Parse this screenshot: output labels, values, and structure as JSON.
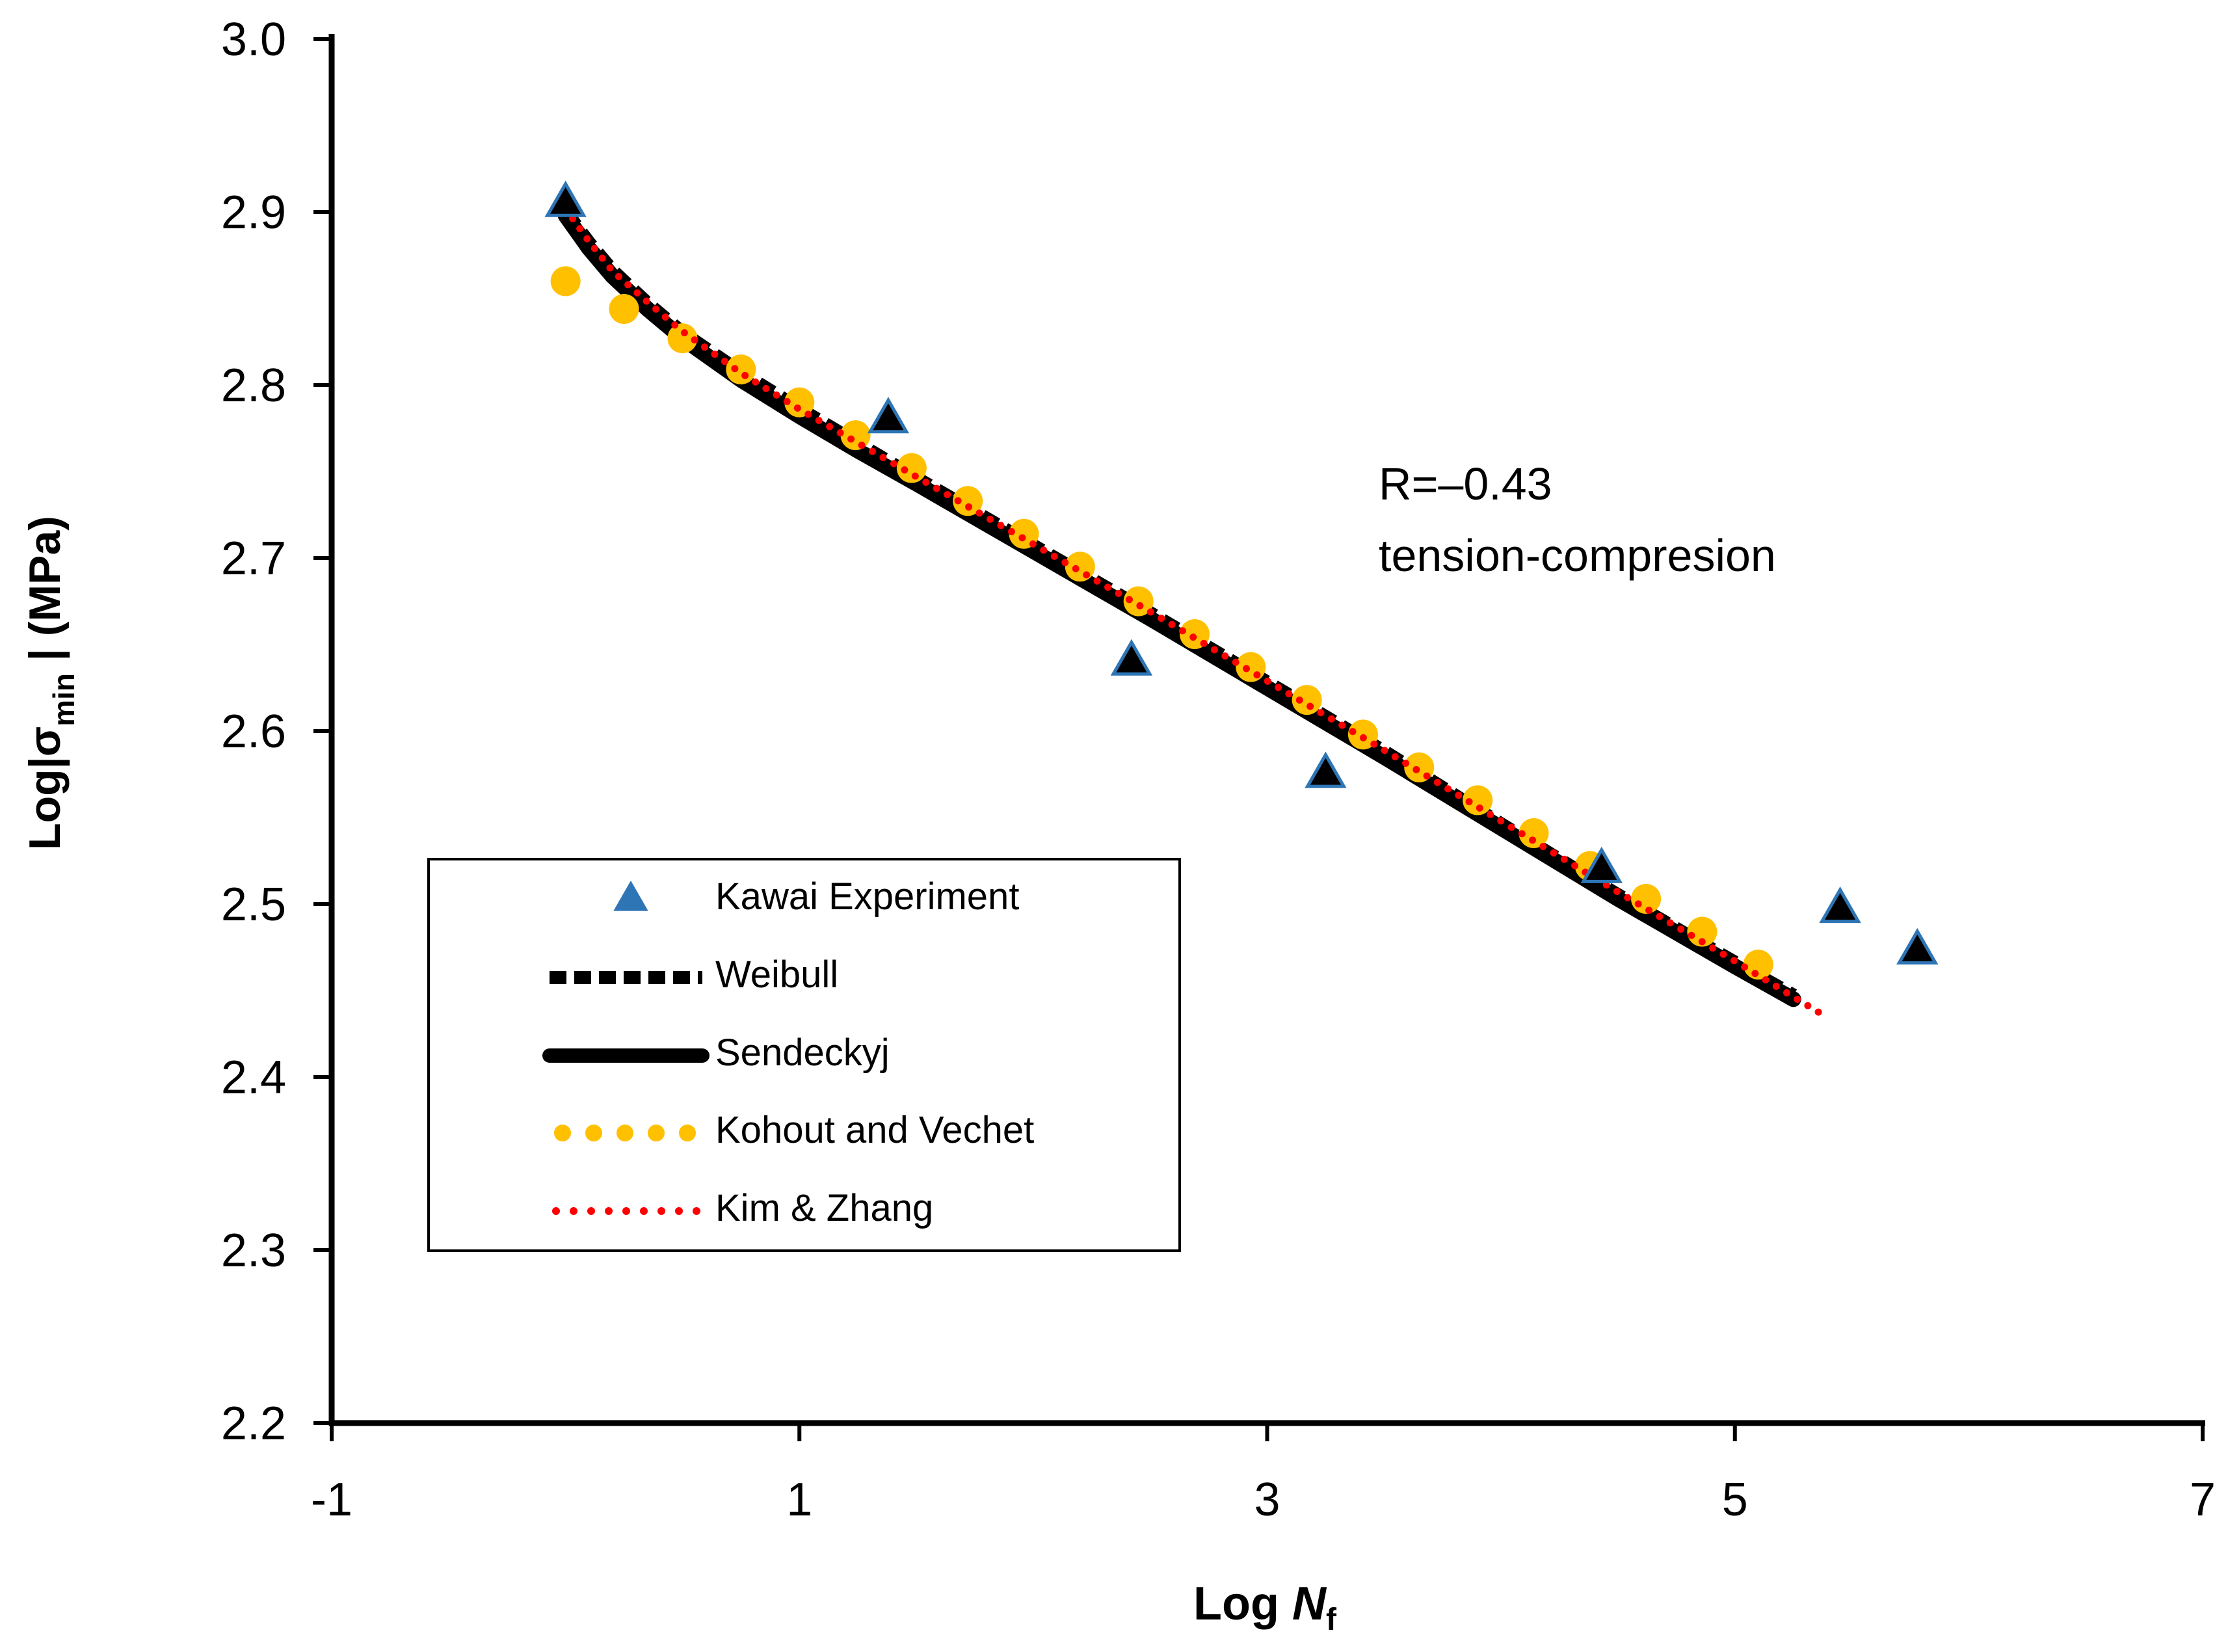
{
  "chart_data": {
    "type": "scatter",
    "title": "",
    "xlabel": {
      "main": "Log ",
      "var": "N",
      "sub": "f"
    },
    "ylabel": {
      "prefix": "Log|σ",
      "sub": "min",
      "suffix": " | (MPa)"
    },
    "xlim": [
      -1,
      7
    ],
    "ylim": [
      2.2,
      3.0
    ],
    "x_ticks": [
      -1,
      1,
      3,
      5,
      7
    ],
    "x_tick_labels": [
      "-1",
      "1",
      "3",
      "5",
      "7"
    ],
    "y_ticks": [
      2.2,
      2.3,
      2.4,
      2.5,
      2.6,
      2.7,
      2.8,
      2.9,
      3.0
    ],
    "y_tick_labels": [
      "2.2",
      "2.3",
      "2.4",
      "2.5",
      "2.6",
      "2.7",
      "2.8",
      "2.9",
      "3.0"
    ],
    "annotations": [
      "R=–0.43",
      "tension-compresion"
    ],
    "legend_position": "lower-left",
    "colors": {
      "kawai_fill": "#000000",
      "kawai_edge": "#2e75b6",
      "kohout": "#ffc000",
      "kim_zhang": "#ff0000",
      "line": "#000000"
    },
    "series": [
      {
        "name": "Kawai Experiment",
        "style": "triangle-marker",
        "x": [
          0.0,
          1.38,
          2.42,
          3.25,
          4.43,
          5.45,
          5.78
        ],
        "y": [
          2.905,
          2.78,
          2.64,
          2.575,
          2.52,
          2.497,
          2.473
        ]
      },
      {
        "name": "Weibull",
        "style": "dashed-line",
        "x": [
          0.0,
          0.1,
          0.2,
          0.35,
          0.5,
          0.75,
          1.0,
          1.25,
          1.5,
          2.0,
          2.5,
          3.0,
          3.5,
          4.0,
          4.5,
          5.0,
          5.25
        ],
        "y": [
          2.9,
          2.882,
          2.866,
          2.847,
          2.83,
          2.807,
          2.786,
          2.766,
          2.746,
          2.707,
          2.668,
          2.628,
          2.588,
          2.546,
          2.505,
          2.466,
          2.447
        ]
      },
      {
        "name": "Sendeckyj",
        "style": "solid-line",
        "x": [
          0.0,
          0.1,
          0.2,
          0.35,
          0.5,
          0.75,
          1.0,
          1.25,
          1.5,
          2.0,
          2.5,
          3.0,
          3.5,
          4.0,
          4.5,
          5.0,
          5.25
        ],
        "y": [
          2.898,
          2.879,
          2.863,
          2.844,
          2.827,
          2.803,
          2.782,
          2.762,
          2.743,
          2.704,
          2.665,
          2.625,
          2.585,
          2.544,
          2.503,
          2.464,
          2.445
        ]
      },
      {
        "name": "Kohout and Vechet",
        "style": "dot-marker",
        "x": [
          0.0,
          0.25,
          0.5,
          0.75,
          1.0,
          1.24,
          1.48,
          1.72,
          1.96,
          2.2,
          2.45,
          2.69,
          2.93,
          3.17,
          3.41,
          3.65,
          3.9,
          4.14,
          4.38,
          4.62,
          4.86,
          5.1
        ],
        "y": [
          2.86,
          2.844,
          2.827,
          2.809,
          2.79,
          2.771,
          2.752,
          2.733,
          2.714,
          2.695,
          2.675,
          2.656,
          2.637,
          2.618,
          2.598,
          2.579,
          2.56,
          2.541,
          2.522,
          2.503,
          2.484,
          2.465
        ]
      },
      {
        "name": "Kim & Zhang",
        "style": "dotted-line",
        "x": [
          0.0,
          0.1,
          0.2,
          0.35,
          0.5,
          0.75,
          1.0,
          1.5,
          2.0,
          2.5,
          3.0,
          3.5,
          4.0,
          4.5,
          5.0,
          5.4
        ],
        "y": [
          2.902,
          2.883,
          2.866,
          2.848,
          2.831,
          2.807,
          2.786,
          2.747,
          2.708,
          2.669,
          2.629,
          2.589,
          2.548,
          2.507,
          2.467,
          2.434
        ]
      }
    ]
  }
}
